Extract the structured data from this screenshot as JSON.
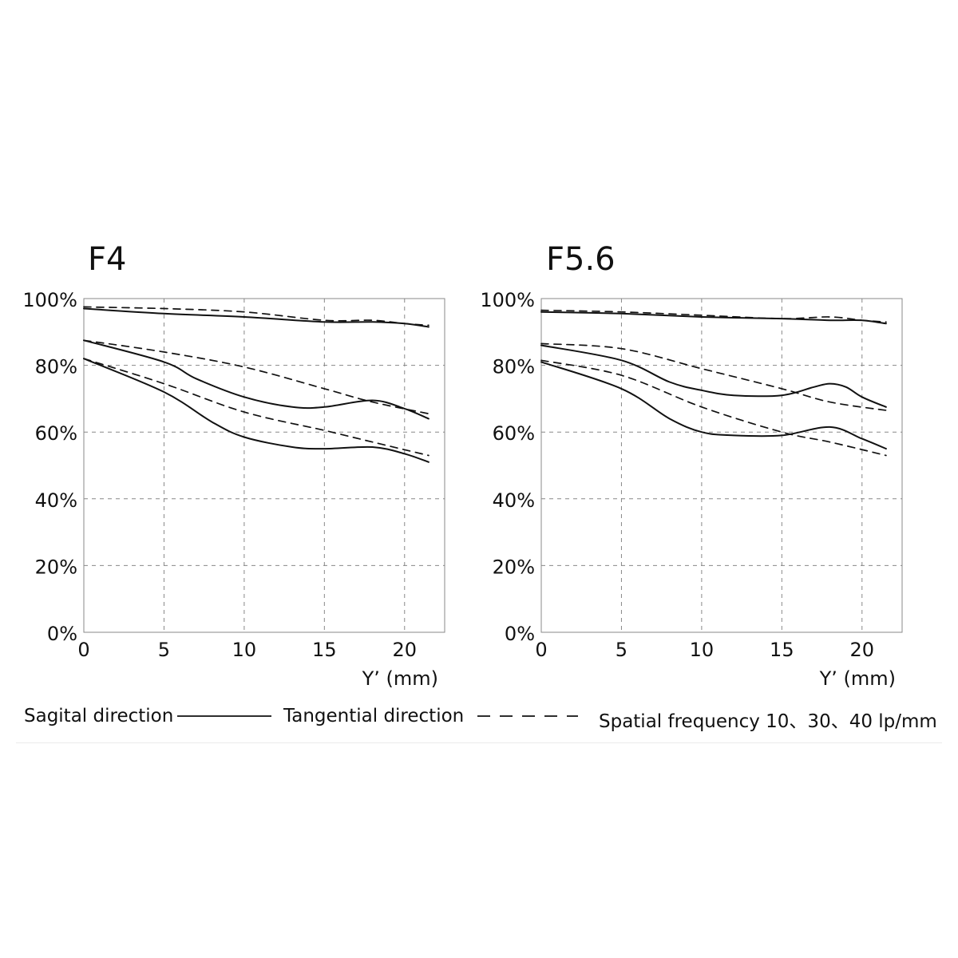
{
  "chart_data": [
    {
      "type": "line",
      "title": "F4",
      "xlabel": "Y’ (mm)",
      "ylabel": "",
      "xlim": [
        0,
        22.5
      ],
      "ylim": [
        0,
        100
      ],
      "xticks": [
        "0",
        "5",
        "10",
        "15",
        "20"
      ],
      "yticks": [
        "0%",
        "20%",
        "40%",
        "60%",
        "80%",
        "100%"
      ],
      "grid": true,
      "series": [
        {
          "style": "solid",
          "x": [
            0,
            5,
            10,
            15,
            18,
            20,
            21.5
          ],
          "values": [
            97,
            95.5,
            94.5,
            93,
            93,
            92.5,
            91.5
          ]
        },
        {
          "style": "dashed",
          "x": [
            0,
            5,
            10,
            15,
            18,
            20,
            21.5
          ],
          "values": [
            97.5,
            97,
            96,
            93.5,
            93.5,
            92.5,
            92
          ]
        },
        {
          "style": "solid",
          "x": [
            0,
            5,
            7,
            10,
            13,
            15,
            18,
            20,
            21.5
          ],
          "values": [
            87.5,
            81,
            76,
            70.5,
            67.5,
            67.5,
            69.5,
            67,
            64
          ]
        },
        {
          "style": "dashed",
          "x": [
            0,
            5,
            10,
            15,
            18,
            21.5
          ],
          "values": [
            87.5,
            84,
            79.5,
            73,
            69,
            65.5
          ]
        },
        {
          "style": "solid",
          "x": [
            0,
            5,
            8,
            10,
            13,
            15,
            18,
            20,
            21.5
          ],
          "values": [
            82,
            72,
            63,
            58.5,
            55.5,
            55,
            55.5,
            53.5,
            51
          ]
        },
        {
          "style": "dashed",
          "x": [
            0,
            5,
            10,
            15,
            18,
            21.5
          ],
          "values": [
            82,
            74.5,
            66,
            60.5,
            57,
            53
          ]
        }
      ]
    },
    {
      "type": "line",
      "title": "F5.6",
      "xlabel": "Y’ (mm)",
      "ylabel": "",
      "xlim": [
        0,
        22.5
      ],
      "ylim": [
        0,
        100
      ],
      "xticks": [
        "0",
        "5",
        "10",
        "15",
        "20"
      ],
      "yticks": [
        "0%",
        "20%",
        "40%",
        "60%",
        "80%",
        "100%"
      ],
      "grid": true,
      "series": [
        {
          "style": "solid",
          "x": [
            0,
            5,
            10,
            15,
            18,
            20,
            21.5
          ],
          "values": [
            96,
            95.5,
            94.5,
            94,
            93.5,
            93.5,
            92.5
          ]
        },
        {
          "style": "dashed",
          "x": [
            0,
            5,
            10,
            15,
            18,
            20,
            21.5
          ],
          "values": [
            96.5,
            96,
            95,
            94,
            94.5,
            93.5,
            93
          ]
        },
        {
          "style": "solid",
          "x": [
            0,
            5,
            8,
            10,
            12,
            15,
            17,
            18,
            19,
            20,
            21.5
          ],
          "values": [
            86,
            81.5,
            75,
            72.5,
            71,
            71,
            73.5,
            74.5,
            73.5,
            70.5,
            67.5
          ]
        },
        {
          "style": "dashed",
          "x": [
            0,
            5,
            10,
            15,
            18,
            21.5
          ],
          "values": [
            86.5,
            85,
            79,
            73,
            69,
            66.5
          ]
        },
        {
          "style": "solid",
          "x": [
            0,
            5,
            8,
            10,
            12,
            15,
            18,
            20,
            21.5
          ],
          "values": [
            81,
            73,
            64,
            60,
            59,
            59,
            61.5,
            58,
            55
          ]
        },
        {
          "style": "dashed",
          "x": [
            0,
            5,
            10,
            15,
            18,
            21.5
          ],
          "values": [
            81.5,
            77,
            67.5,
            60,
            57,
            53
          ]
        }
      ]
    }
  ],
  "legend": {
    "sagittal_label": "Sagital direction",
    "tangential_label": "Tangential direction",
    "frequency_label": "Spatial frequency 10、30、40 lp/mm"
  }
}
